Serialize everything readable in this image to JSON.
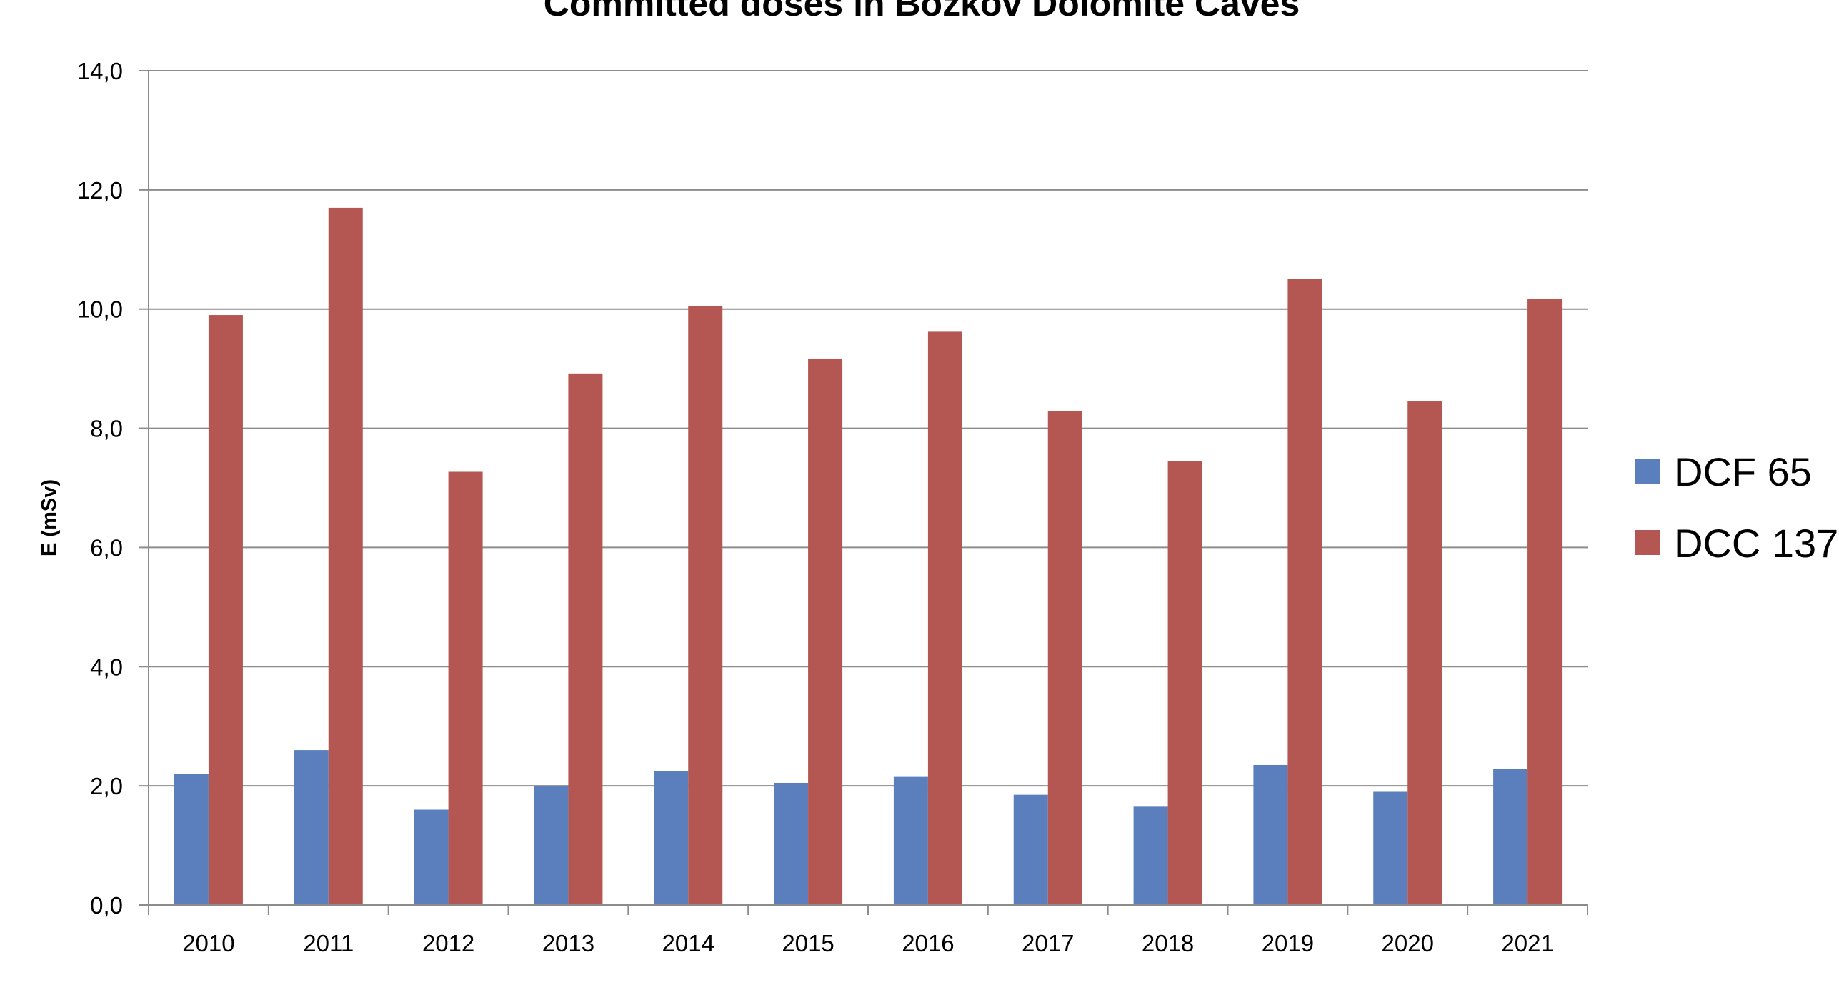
{
  "chart_data": {
    "type": "bar",
    "title": "Committed doses in Božkov Dolomite Caves",
    "xlabel": "",
    "ylabel": "E (mSv)",
    "ylim": [
      0,
      14
    ],
    "ytick_labels": [
      "0,0",
      "2,0",
      "4,0",
      "6,0",
      "8,0",
      "10,0",
      "12,0",
      "14,0"
    ],
    "categories": [
      "2010",
      "2011",
      "2012",
      "2013",
      "2014",
      "2015",
      "2016",
      "2017",
      "2018",
      "2019",
      "2020",
      "2021"
    ],
    "series": [
      {
        "name": "DCF 65",
        "color": "#5b7fbc",
        "values": [
          2.2,
          2.6,
          1.6,
          2.0,
          2.25,
          2.05,
          2.15,
          1.85,
          1.65,
          2.35,
          1.9,
          2.28
        ]
      },
      {
        "name": "DCC 137",
        "color": "#b45651",
        "values": [
          9.9,
          11.7,
          7.27,
          8.92,
          10.05,
          9.17,
          9.62,
          8.29,
          7.45,
          10.5,
          8.45,
          10.17
        ]
      }
    ],
    "grid": true,
    "legend_position": "right"
  }
}
